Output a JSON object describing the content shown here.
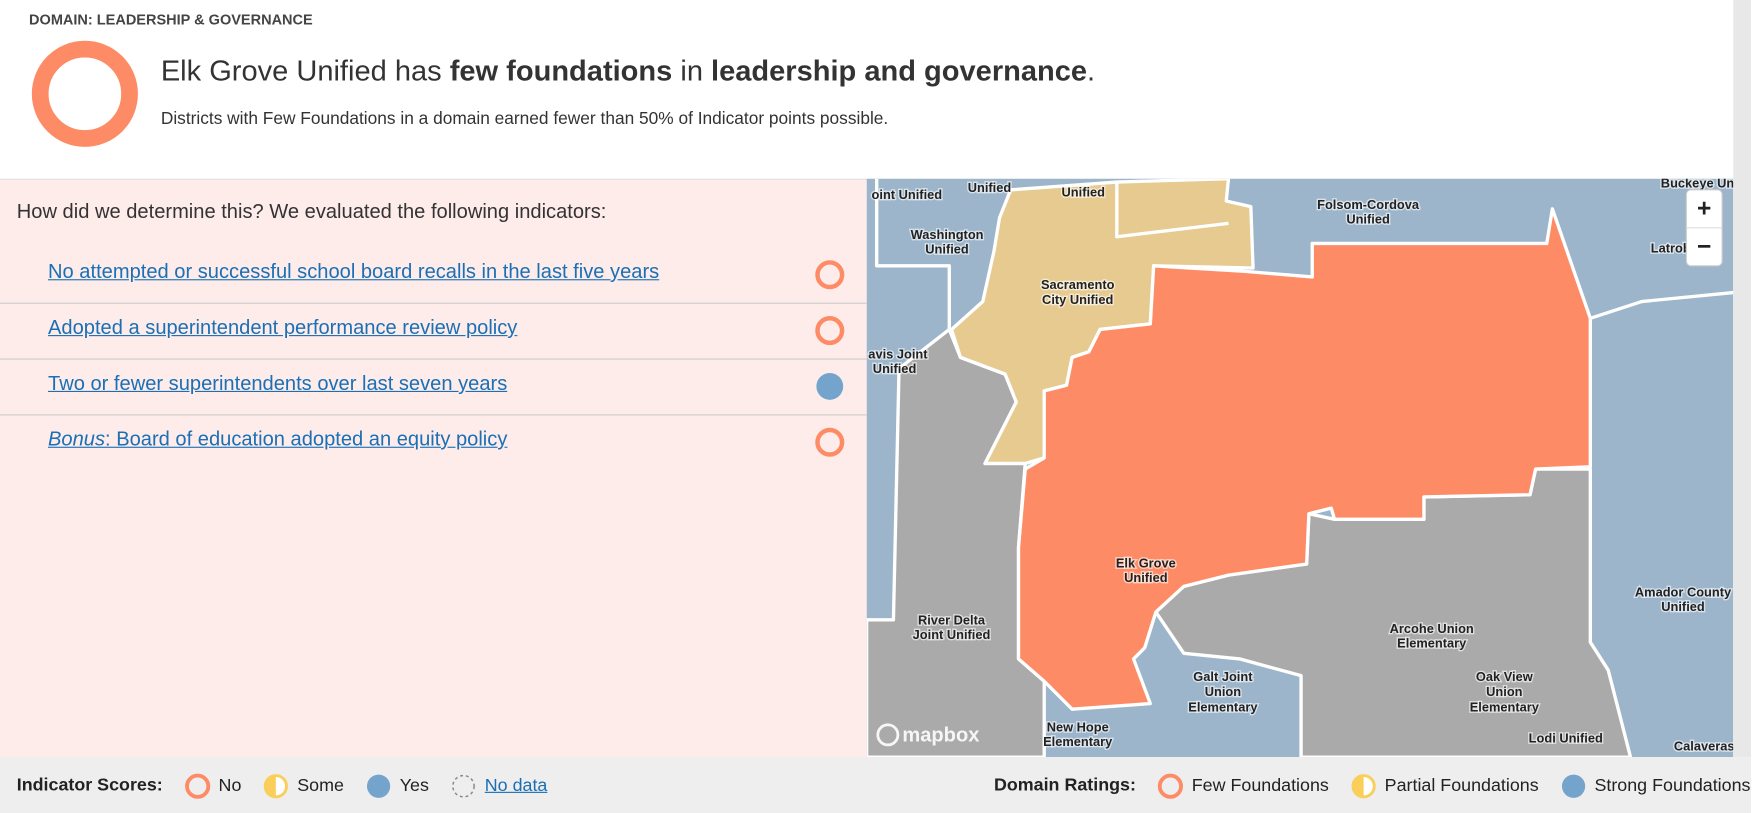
{
  "header": {
    "domain_label": "DOMAIN: LEADERSHIP & GOVERNANCE",
    "rating": "Few Foundations",
    "title_parts": [
      "Elk Grove Unified has ",
      "few foundations",
      " in ",
      "leadership and governance",
      "."
    ],
    "subtitle": "Districts with Few Foundations in a domain earned fewer than 50% of Indicator points possible."
  },
  "indicators": {
    "question": "How did we determine this? We evaluated the following indicators:",
    "items": [
      {
        "label": "No attempted or successful school board recalls in the last five years",
        "score": "No"
      },
      {
        "label": "Adopted a superintendent performance review policy",
        "score": "No"
      },
      {
        "label": "Two or fewer superintendents over last seven years",
        "score": "Yes"
      },
      {
        "prefix": "Bonus",
        "label": ": Board of education adopted an equity policy",
        "score": "No"
      }
    ]
  },
  "map": {
    "labels": [
      [
        "oint Unified"
      ],
      [
        "Unified"
      ],
      [
        "Unified"
      ],
      [
        "Washington",
        "Unified"
      ],
      [
        "Sacramento",
        "City Unified"
      ],
      [
        "Folsom-Cordova",
        "Unified"
      ],
      [
        "avis Joint",
        "Unified"
      ],
      [
        "Elk Grove",
        "Unified"
      ],
      [
        "River Delta",
        "Joint Unified"
      ],
      [
        "Galt Joint",
        "Union",
        "Elementary"
      ],
      [
        "Arcohe Union",
        "Elementary"
      ],
      [
        "Oak View",
        "Union",
        "Elementary"
      ],
      [
        "New Hope",
        "Elementary"
      ],
      [
        "Lodi Unified"
      ],
      [
        "Amador County",
        "Unified"
      ],
      [
        "Calaveras"
      ],
      [
        "Latrob"
      ],
      [
        "Buckeye Un"
      ]
    ],
    "attribution": "mapbox",
    "zoom_in": "+",
    "zoom_out": "−"
  },
  "legend": {
    "indicator_scores": {
      "label": "Indicator Scores:",
      "items": [
        {
          "label": "No",
          "color": "#fd8c66"
        },
        {
          "label": "Some",
          "color": "#f9cf5a"
        },
        {
          "label": "Yes",
          "color": "#74a3cc"
        },
        {
          "label": "No data",
          "color": "#888888"
        }
      ]
    },
    "domain_ratings": {
      "label": "Domain Ratings:",
      "items": [
        {
          "label": "Few Foundations",
          "color": "#fd8c66"
        },
        {
          "label": "Partial Foundations",
          "color": "#f9cf5a"
        },
        {
          "label": "Strong Foundations",
          "color": "#74a3cc"
        }
      ]
    }
  }
}
